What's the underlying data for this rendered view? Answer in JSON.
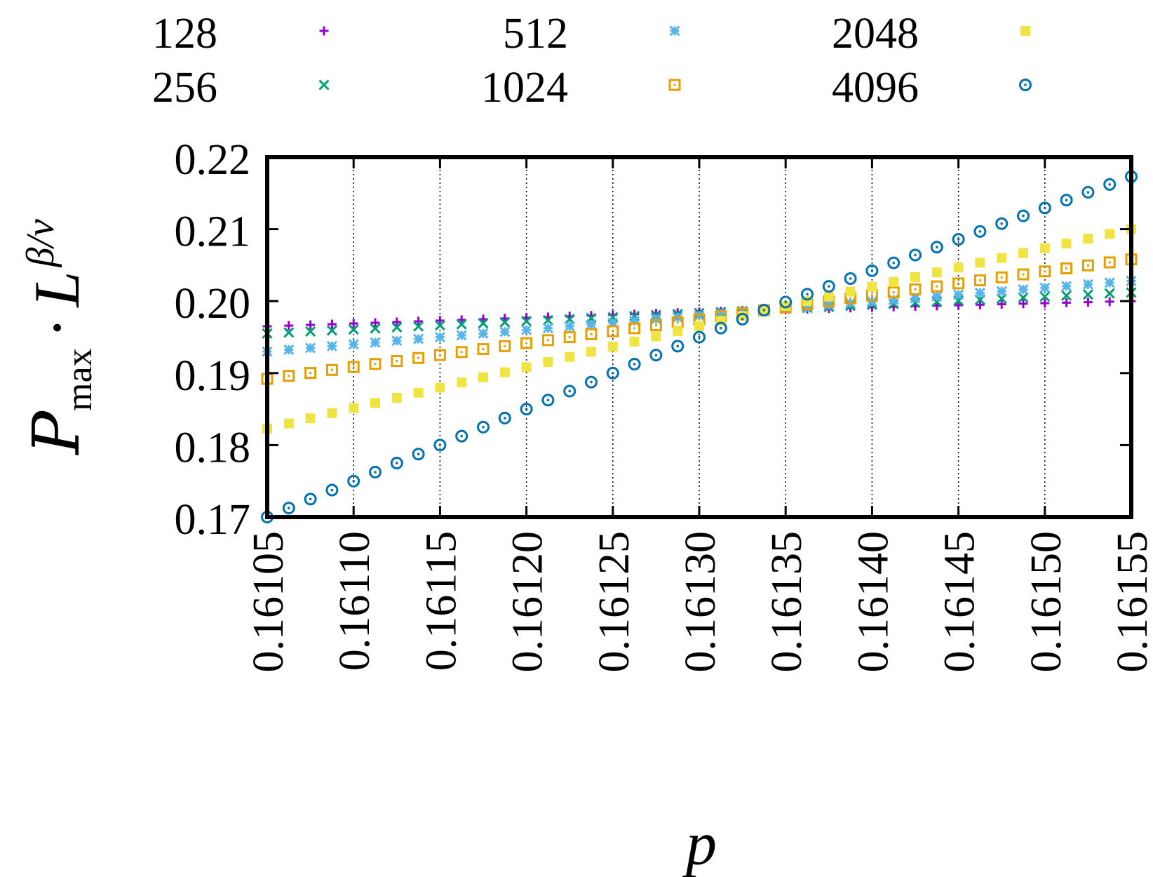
{
  "chart_data": {
    "type": "scatter",
    "title": "",
    "xlabel": "p",
    "ylabel": {
      "script_p": "P",
      "subscript": "max",
      "dot": "·",
      "L": "L",
      "exponent": "β/ν"
    },
    "xlim": [
      0.16105,
      0.16155
    ],
    "ylim": [
      0.17,
      0.22
    ],
    "x_ticks": [
      "0.16105",
      "0.16110",
      "0.16115",
      "0.16120",
      "0.16125",
      "0.16130",
      "0.16135",
      "0.16140",
      "0.16145",
      "0.16150",
      "0.16155"
    ],
    "y_ticks": [
      "0.17",
      "0.18",
      "0.19",
      "0.20",
      "0.21",
      "0.22"
    ],
    "grid": "vertical dotted at x ticks",
    "legend_placement": "top, outside plot, 3 columns",
    "x_step": 1.25e-05,
    "series": [
      {
        "name": "128",
        "marker": "plus",
        "color": "#9400d3",
        "y_start": 0.1965,
        "y_end": 0.2,
        "y_crossing": 0.1988
      },
      {
        "name": "256",
        "marker": "cross",
        "color": "#009e73",
        "y_start": 0.1955,
        "y_end": 0.2012,
        "y_crossing": 0.1988
      },
      {
        "name": "512",
        "marker": "star",
        "color": "#56b4e9",
        "y_start": 0.193,
        "y_end": 0.2028,
        "y_crossing": 0.1988
      },
      {
        "name": "1024",
        "marker": "open-square",
        "color": "#e69f00",
        "y_start": 0.1892,
        "y_end": 0.2058,
        "y_crossing": 0.1988
      },
      {
        "name": "2048",
        "marker": "filled-square",
        "color": "#f0e442",
        "y_start": 0.1823,
        "y_end": 0.21,
        "y_crossing": 0.1988
      },
      {
        "name": "4096",
        "marker": "dot-circle",
        "color": "#0072b2",
        "y_start": 0.17,
        "y_end": 0.2173,
        "y_crossing": 0.199
      }
    ],
    "crossing_x": 0.16134
  }
}
